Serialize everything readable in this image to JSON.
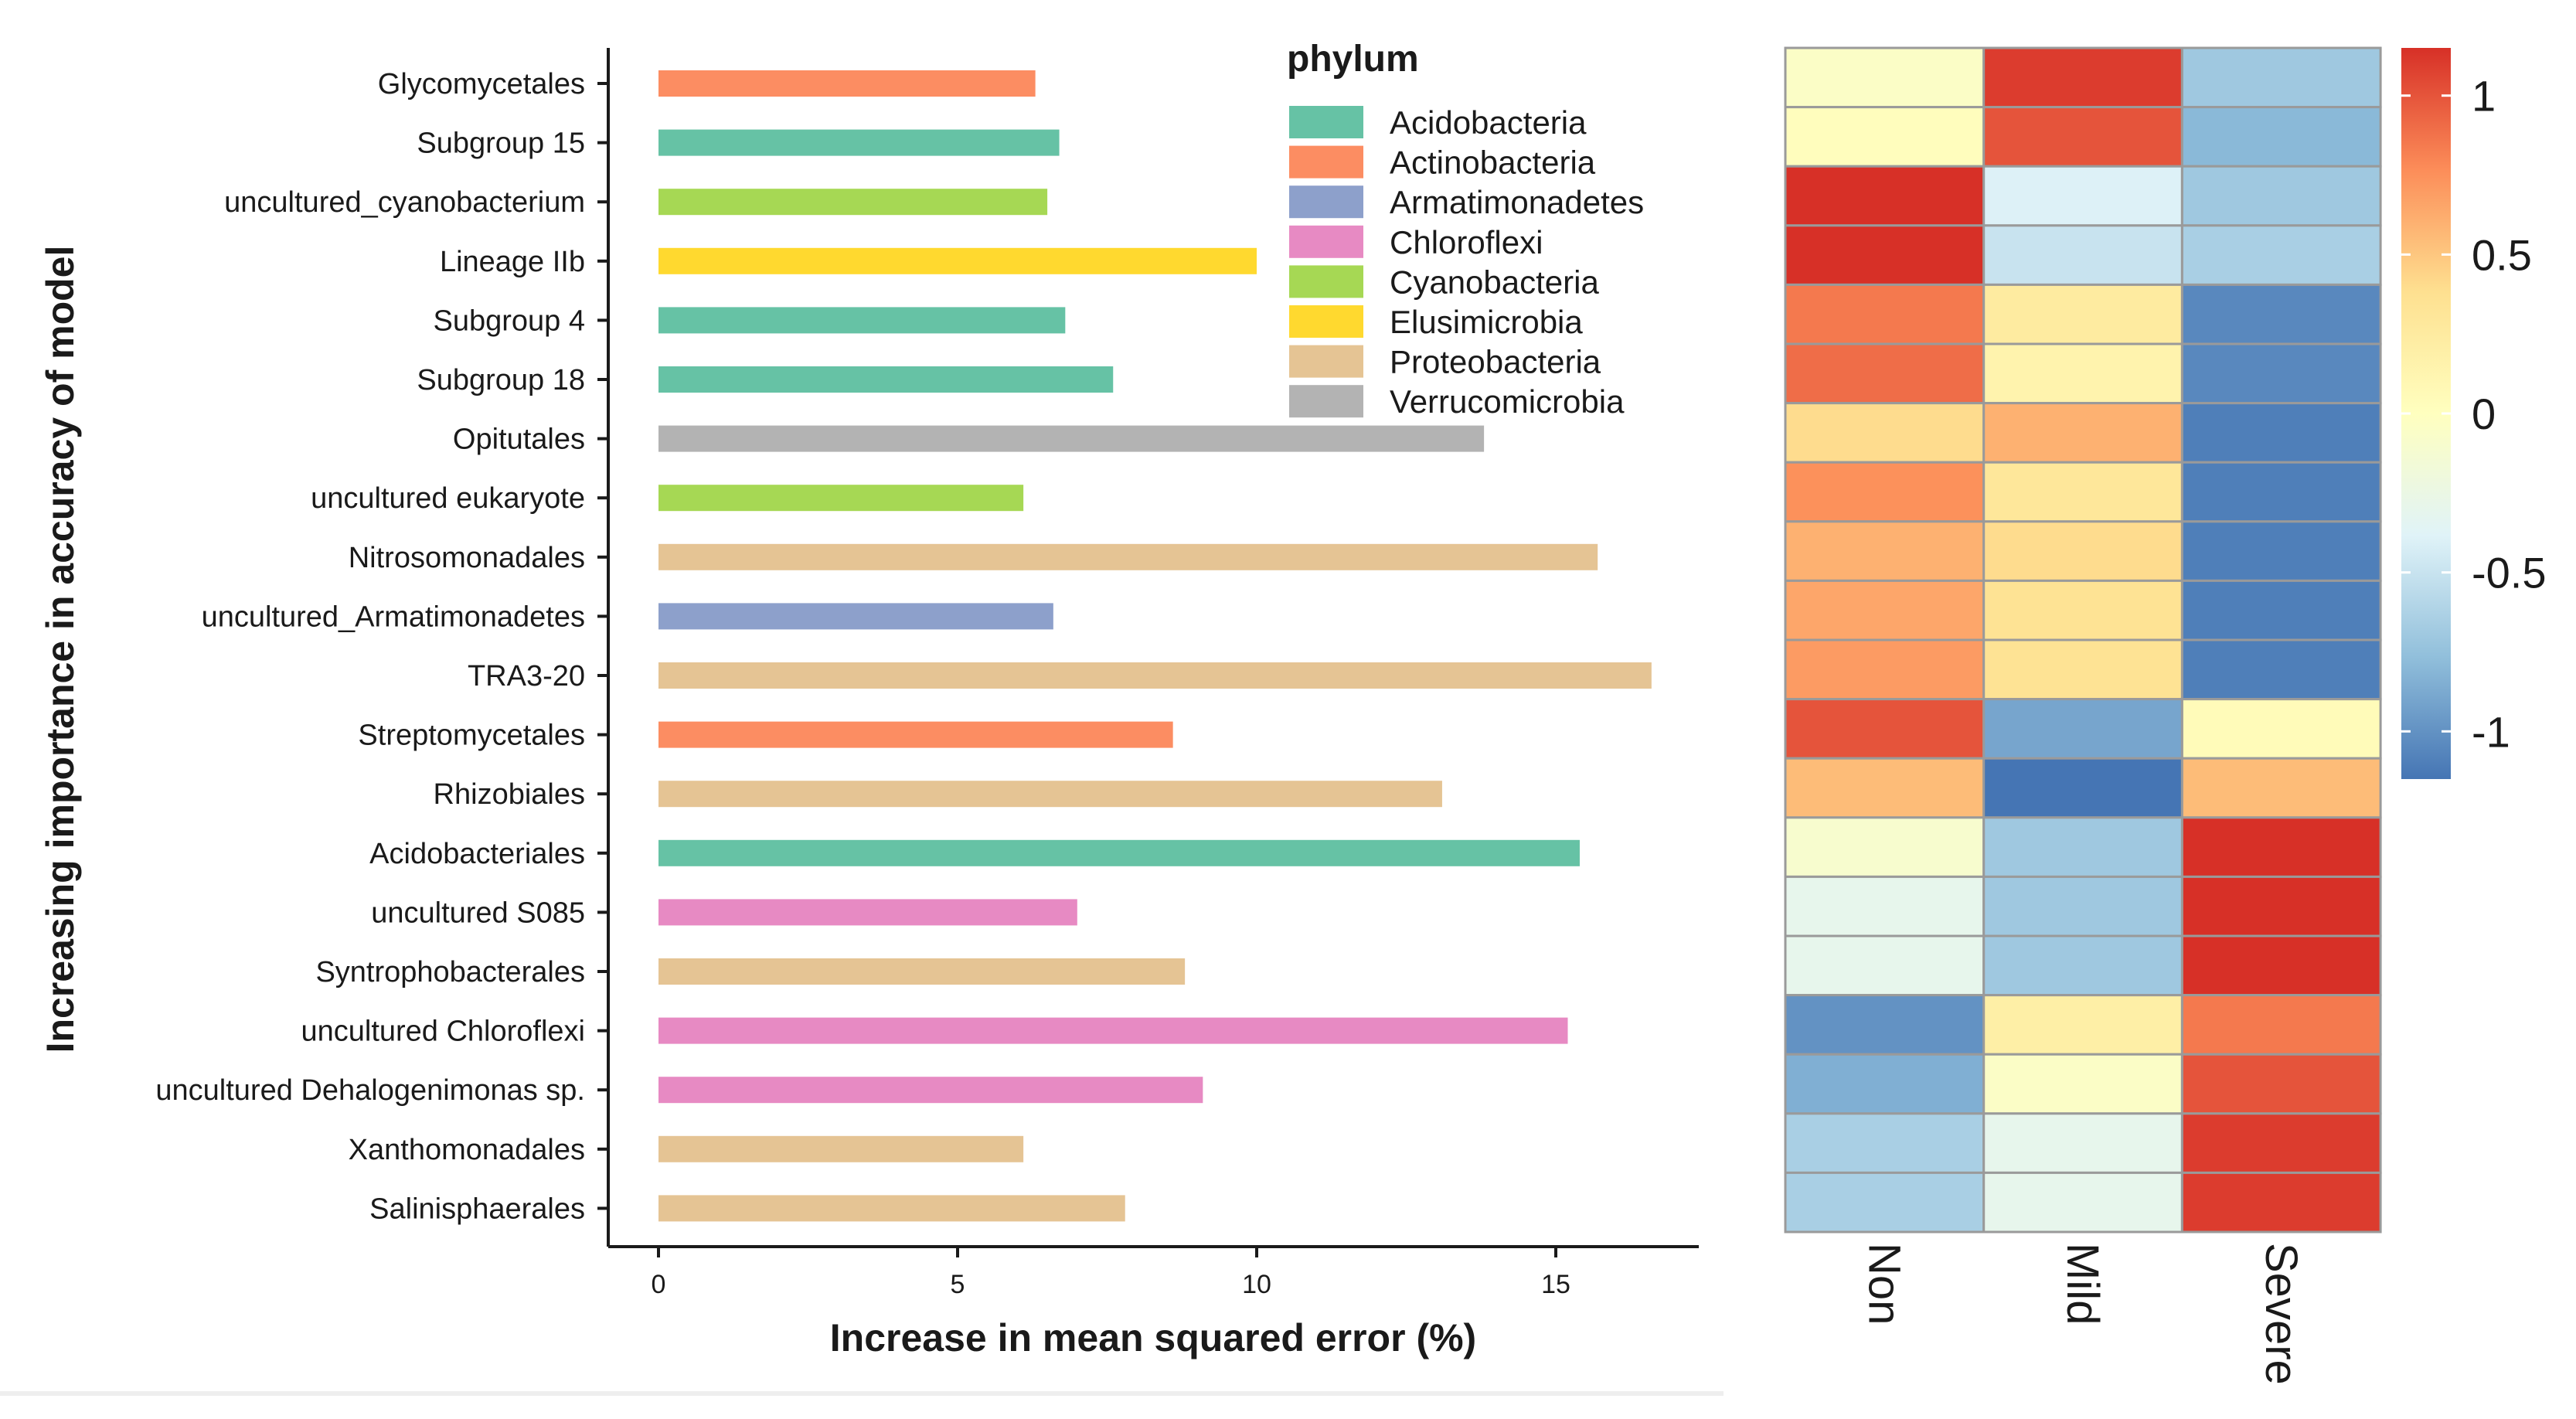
{
  "chart_data": [
    {
      "type": "bar",
      "orientation": "horizontal",
      "title": "",
      "xlabel": "Increase in mean squared error (%)",
      "ylabel": "Increasing importance in accuracy of model",
      "xlim": [
        0,
        17
      ],
      "xticks": [
        "0",
        "5",
        "10",
        "15"
      ],
      "grid": false,
      "legend": {
        "title": "phylum",
        "position": "top-right",
        "entries": [
          {
            "name": "Acidobacteria",
            "color": "#66c2a5"
          },
          {
            "name": "Actinobacteria",
            "color": "#fc8d62"
          },
          {
            "name": "Armatimonadetes",
            "color": "#8da0cb"
          },
          {
            "name": "Chloroflexi",
            "color": "#e78ac3"
          },
          {
            "name": "Cyanobacteria",
            "color": "#a6d854"
          },
          {
            "name": "Elusimicrobia",
            "color": "#ffd92f"
          },
          {
            "name": "Proteobacteria",
            "color": "#e5c494"
          },
          {
            "name": "Verrucomicrobia",
            "color": "#b3b3b3"
          }
        ]
      },
      "bars": [
        {
          "label": "Glycomycetales",
          "value": 6.3,
          "phylum": "Actinobacteria"
        },
        {
          "label": "Subgroup 15",
          "value": 6.7,
          "phylum": "Acidobacteria"
        },
        {
          "label": "uncultured_cyanobacterium",
          "value": 6.5,
          "phylum": "Cyanobacteria"
        },
        {
          "label": "Lineage IIb",
          "value": 10.0,
          "phylum": "Elusimicrobia"
        },
        {
          "label": "Subgroup 4",
          "value": 6.8,
          "phylum": "Acidobacteria"
        },
        {
          "label": "Subgroup 18",
          "value": 7.6,
          "phylum": "Acidobacteria"
        },
        {
          "label": "Opitutales",
          "value": 13.8,
          "phylum": "Verrucomicrobia"
        },
        {
          "label": "uncultured eukaryote",
          "value": 6.1,
          "phylum": "Cyanobacteria"
        },
        {
          "label": "Nitrosomonadales",
          "value": 15.7,
          "phylum": "Proteobacteria"
        },
        {
          "label": "uncultured_Armatimonadetes",
          "value": 6.6,
          "phylum": "Armatimonadetes"
        },
        {
          "label": "TRA3-20",
          "value": 16.6,
          "phylum": "Proteobacteria"
        },
        {
          "label": "Streptomycetales",
          "value": 8.6,
          "phylum": "Actinobacteria"
        },
        {
          "label": "Rhizobiales",
          "value": 13.1,
          "phylum": "Proteobacteria"
        },
        {
          "label": "Acidobacteriales",
          "value": 15.4,
          "phylum": "Acidobacteria"
        },
        {
          "label": "uncultured S085",
          "value": 7.0,
          "phylum": "Chloroflexi"
        },
        {
          "label": "Syntrophobacterales",
          "value": 8.8,
          "phylum": "Proteobacteria"
        },
        {
          "label": "uncultured Chloroflexi",
          "value": 15.2,
          "phylum": "Chloroflexi"
        },
        {
          "label": "uncultured Dehalogenimonas sp.",
          "value": 9.1,
          "phylum": "Chloroflexi"
        },
        {
          "label": "Xanthomonadales",
          "value": 6.1,
          "phylum": "Proteobacteria"
        },
        {
          "label": "Salinisphaerales",
          "value": 7.8,
          "phylum": "Proteobacteria"
        }
      ]
    },
    {
      "type": "heatmap",
      "columns": [
        "Non",
        "Mild",
        "Severe"
      ],
      "colorbar": {
        "min": -1.15,
        "max": 1.15,
        "ticks": [
          1,
          0.5,
          0,
          -0.5,
          -1
        ],
        "tick_labels": [
          "1",
          "0.5",
          "0",
          "-0.5",
          "-1"
        ],
        "colors": [
          "#4575b4",
          "#91bfdb",
          "#e0f3f8",
          "#ffffbf",
          "#fee090",
          "#fc8d59",
          "#d73027"
        ]
      },
      "values": [
        [
          -0.05,
          1.1,
          -0.7
        ],
        [
          0.02,
          1.0,
          -0.8
        ],
        [
          1.15,
          -0.4,
          -0.7
        ],
        [
          1.15,
          -0.5,
          -0.65
        ],
        [
          0.85,
          0.25,
          -1.05
        ],
        [
          0.9,
          0.15,
          -1.05
        ],
        [
          0.4,
          0.6,
          -1.1
        ],
        [
          0.75,
          0.3,
          -1.1
        ],
        [
          0.6,
          0.4,
          -1.1
        ],
        [
          0.65,
          0.35,
          -1.1
        ],
        [
          0.7,
          0.35,
          -1.1
        ],
        [
          1.0,
          -0.9,
          0.05
        ],
        [
          0.55,
          -1.15,
          0.55
        ],
        [
          -0.1,
          -0.7,
          1.15
        ],
        [
          -0.3,
          -0.7,
          1.15
        ],
        [
          -0.3,
          -0.7,
          1.15
        ],
        [
          -1.0,
          0.2,
          0.85
        ],
        [
          -0.85,
          -0.05,
          1.0
        ],
        [
          -0.65,
          -0.3,
          1.1
        ],
        [
          -0.65,
          -0.3,
          1.1
        ]
      ]
    }
  ]
}
